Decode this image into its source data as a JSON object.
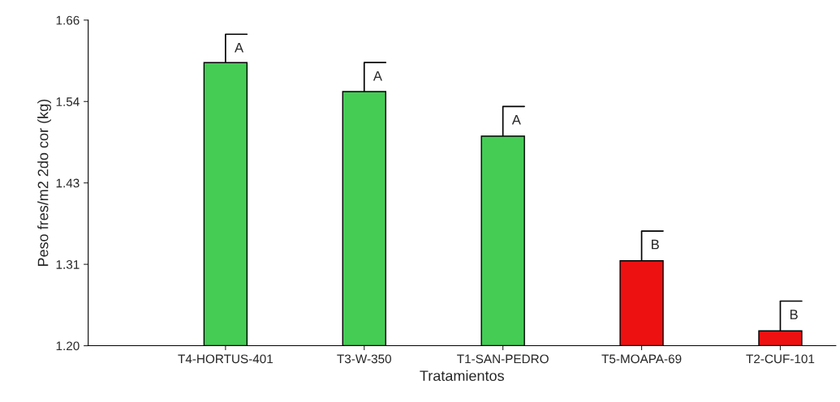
{
  "chart_data": {
    "type": "bar",
    "xlabel": "Tratamientos",
    "ylabel": "Peso fres/m2 2do cor (kg)",
    "categories": [
      "T4-HORTUS-401",
      "T3-W-350",
      "T1-SAN-PEDRO",
      "T5-MOAPA-69",
      "T2-CUF-101"
    ],
    "values": [
      1.6,
      1.559,
      1.496,
      1.32,
      1.221
    ],
    "colors": [
      "#44cc55",
      "#44cc55",
      "#44cc55",
      "#ee1111",
      "#ee1111"
    ],
    "errors": [
      [
        1.6,
        1.64
      ],
      [
        1.559,
        1.6
      ],
      [
        1.496,
        1.538
      ],
      [
        1.32,
        1.362
      ],
      [
        1.221,
        1.263
      ]
    ],
    "ylim": [
      1.2,
      1.66
    ],
    "yticks": [
      {
        "value": 1.2,
        "label": "1.20"
      },
      {
        "value": 1.315,
        "label": "1.31"
      },
      {
        "value": 1.43,
        "label": "1.43"
      },
      {
        "value": 1.545,
        "label": "1.54"
      },
      {
        "value": 1.66,
        "label": "1.66"
      }
    ],
    "grid": false,
    "legend": false,
    "annotations": [
      "A",
      "A",
      "A",
      "B",
      "B"
    ]
  }
}
